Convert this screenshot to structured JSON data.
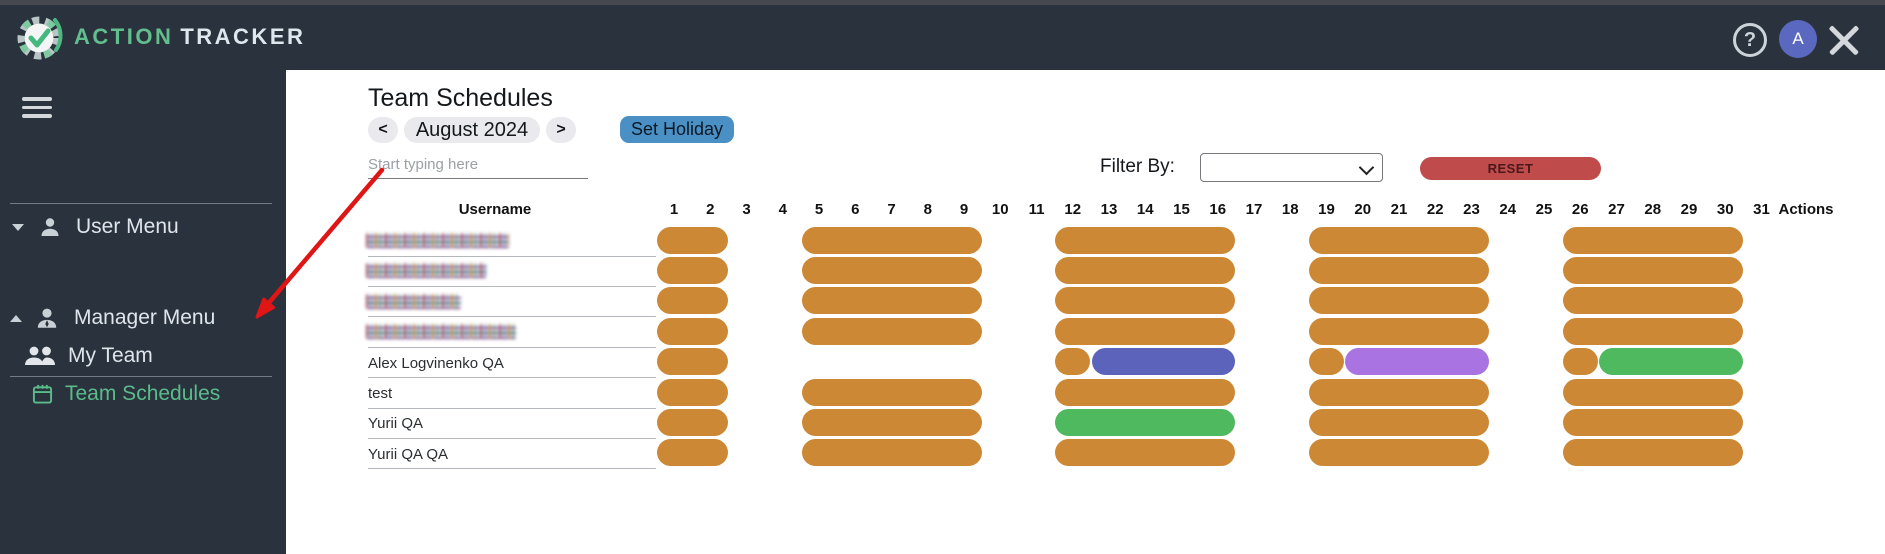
{
  "header": {
    "logo_part1": "ACTION",
    "logo_part2": "TRACKER",
    "help_glyph": "?",
    "avatar_letter": "A"
  },
  "sidebar": {
    "items": [
      {
        "label": "User Menu"
      },
      {
        "label": "Manager Menu"
      },
      {
        "label": "My Team"
      },
      {
        "label": "Team Schedules"
      }
    ]
  },
  "main": {
    "title": "Team Schedules",
    "month_nav": {
      "prev": "<",
      "label": "August 2024",
      "next": ">"
    },
    "set_holiday_label": "Set Holiday",
    "search_placeholder": "Start typing here",
    "filter_label": "Filter By:",
    "filter_value": "",
    "reset_label": "RESET",
    "table": {
      "username_header": "Username",
      "actions_header": "Actions",
      "days": [
        1,
        2,
        3,
        4,
        5,
        6,
        7,
        8,
        9,
        10,
        11,
        12,
        13,
        14,
        15,
        16,
        17,
        18,
        19,
        20,
        21,
        22,
        23,
        24,
        25,
        26,
        27,
        28,
        29,
        30,
        31
      ],
      "rows": [
        {
          "username": "",
          "censored": true,
          "noise_width": 143,
          "spans": [
            {
              "from": 1,
              "to": 2,
              "color": "orange"
            },
            {
              "from": 5,
              "to": 9,
              "color": "orange"
            },
            {
              "from": 12,
              "to": 16,
              "color": "orange"
            },
            {
              "from": 19,
              "to": 23,
              "color": "orange"
            },
            {
              "from": 26,
              "to": 30,
              "color": "orange"
            }
          ]
        },
        {
          "username": "",
          "censored": true,
          "noise_width": 120,
          "spans": [
            {
              "from": 1,
              "to": 2,
              "color": "orange"
            },
            {
              "from": 5,
              "to": 9,
              "color": "orange"
            },
            {
              "from": 12,
              "to": 16,
              "color": "orange"
            },
            {
              "from": 19,
              "to": 23,
              "color": "orange"
            },
            {
              "from": 26,
              "to": 30,
              "color": "orange"
            }
          ]
        },
        {
          "username": "",
          "censored": true,
          "noise_width": 95,
          "spans": [
            {
              "from": 1,
              "to": 2,
              "color": "orange"
            },
            {
              "from": 5,
              "to": 9,
              "color": "orange"
            },
            {
              "from": 12,
              "to": 16,
              "color": "orange"
            },
            {
              "from": 19,
              "to": 23,
              "color": "orange"
            },
            {
              "from": 26,
              "to": 30,
              "color": "orange"
            }
          ]
        },
        {
          "username": "",
          "censored": true,
          "noise_width": 150,
          "spans": [
            {
              "from": 1,
              "to": 2,
              "color": "orange"
            },
            {
              "from": 5,
              "to": 9,
              "color": "orange"
            },
            {
              "from": 12,
              "to": 16,
              "color": "orange"
            },
            {
              "from": 19,
              "to": 23,
              "color": "orange"
            },
            {
              "from": 26,
              "to": 30,
              "color": "orange"
            }
          ]
        },
        {
          "username": "Alex Logvinenko QA",
          "censored": false,
          "spans": [
            {
              "from": 1,
              "to": 2,
              "color": "orange"
            },
            {
              "from": 12,
              "to": 12,
              "color": "orange"
            },
            {
              "from": 13,
              "to": 16,
              "color": "blue"
            },
            {
              "from": 19,
              "to": 19,
              "color": "orange"
            },
            {
              "from": 20,
              "to": 23,
              "color": "purple"
            },
            {
              "from": 26,
              "to": 26,
              "color": "orange"
            },
            {
              "from": 27,
              "to": 30,
              "color": "green"
            }
          ]
        },
        {
          "username": "test",
          "censored": false,
          "spans": [
            {
              "from": 1,
              "to": 2,
              "color": "orange"
            },
            {
              "from": 5,
              "to": 9,
              "color": "orange"
            },
            {
              "from": 12,
              "to": 16,
              "color": "orange"
            },
            {
              "from": 19,
              "to": 23,
              "color": "orange"
            },
            {
              "from": 26,
              "to": 30,
              "color": "orange"
            }
          ]
        },
        {
          "username": "Yurii QA",
          "censored": false,
          "spans": [
            {
              "from": 1,
              "to": 2,
              "color": "orange"
            },
            {
              "from": 5,
              "to": 9,
              "color": "orange"
            },
            {
              "from": 12,
              "to": 16,
              "color": "green"
            },
            {
              "from": 19,
              "to": 23,
              "color": "orange"
            },
            {
              "from": 26,
              "to": 30,
              "color": "orange"
            }
          ]
        },
        {
          "username": "Yurii QA QA",
          "censored": false,
          "spans": [
            {
              "from": 1,
              "to": 2,
              "color": "orange"
            },
            {
              "from": 5,
              "to": 9,
              "color": "orange"
            },
            {
              "from": 12,
              "to": 16,
              "color": "orange"
            },
            {
              "from": 19,
              "to": 23,
              "color": "orange"
            },
            {
              "from": 26,
              "to": 30,
              "color": "orange"
            }
          ]
        }
      ]
    }
  },
  "colors": {
    "topbar_bg": "#2a323e",
    "accent_green": "#5abc8a",
    "avatar_bg": "#5a69bf",
    "set_holiday_bg": "#4b90c5",
    "reset_bg": "#bf4b4b",
    "annotation_arrow": "#e01616",
    "palette": {
      "orange": "#cc8834",
      "blue": "#5b63ba",
      "purple": "#a973e2",
      "green": "#4fb95f"
    }
  }
}
